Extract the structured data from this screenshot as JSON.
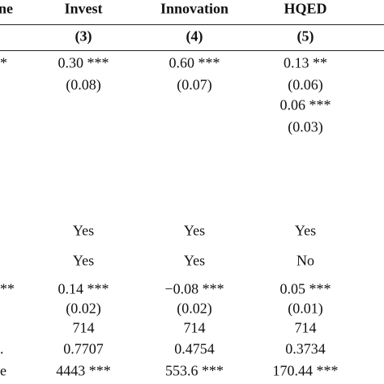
{
  "table": {
    "header": [
      "ne",
      "Invest",
      "Innovation",
      "HQED"
    ],
    "numbers": [
      "(3)",
      "(4)",
      "(5)"
    ],
    "rows": [
      [
        "*",
        "0.30 ***",
        "0.60 ***",
        "0.13 **"
      ],
      [
        null,
        "(0.08)",
        "(0.07)",
        "(0.06)"
      ],
      [
        null,
        null,
        null,
        "0.06 ***"
      ],
      [
        null,
        null,
        null,
        "(0.03)"
      ],
      [
        null,
        "Yes",
        "Yes",
        "Yes"
      ],
      [
        null,
        "Yes",
        "Yes",
        "No"
      ],
      [
        "**",
        "0.14 ***",
        "−0.08 ***",
        "0.05 ***"
      ],
      [
        null,
        "(0.02)",
        "(0.02)",
        "(0.01)"
      ],
      [
        null,
        "714",
        "714",
        "714"
      ],
      [
        ".",
        "0.7707",
        "0.4754",
        "0.3734"
      ],
      [
        "e",
        "4443 ***",
        "553.6 ***",
        "170.44 ***"
      ]
    ]
  }
}
